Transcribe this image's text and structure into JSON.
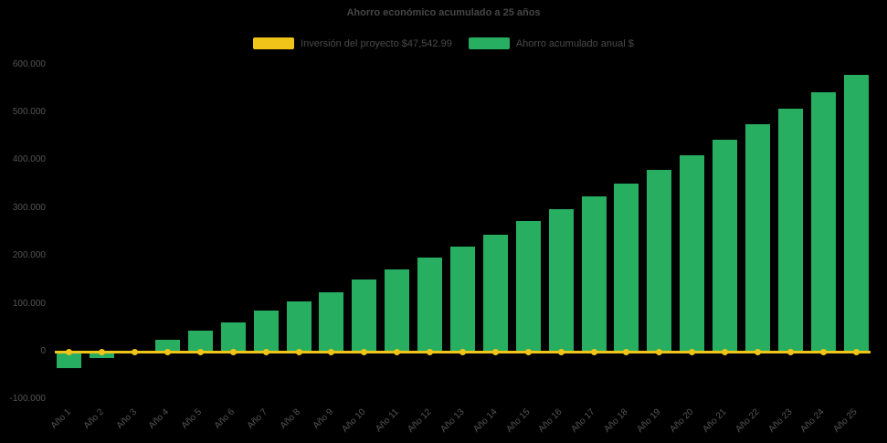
{
  "colors": {
    "background": "#000000",
    "title_text": "#454545",
    "axis_text": "#555555",
    "investment": "#f0c419",
    "savings": "#27ae60"
  },
  "chart_data": {
    "type": "bar",
    "title": "Ahorro económico acumulado a 25 años",
    "categories": [
      "Año 1",
      "Año 2",
      "Año 3",
      "Año 4",
      "Año 5",
      "Año 6",
      "Año 7",
      "Año 8",
      "Año 9",
      "Año 10",
      "Año 11",
      "Año 12",
      "Año 13",
      "Año 14",
      "Año 15",
      "Año 16",
      "Año 17",
      "Año 18",
      "Año 19",
      "Año 20",
      "Año 21",
      "Año 22",
      "Año 23",
      "Año 24",
      "Año 25"
    ],
    "series": [
      {
        "name": "Inversión del proyecto $47,542.99",
        "type": "line",
        "color": "#f0c419",
        "values": [
          0,
          0,
          0,
          0,
          0,
          0,
          0,
          0,
          0,
          0,
          0,
          0,
          0,
          0,
          0,
          0,
          0,
          0,
          0,
          0,
          0,
          0,
          0,
          0,
          0
        ]
      },
      {
        "name": "Ahorro acumulado anual $",
        "type": "bar",
        "color": "#27ae60",
        "values": [
          -35000,
          -14000,
          -4000,
          25000,
          43000,
          62000,
          85000,
          105000,
          125000,
          150000,
          172000,
          196000,
          220000,
          245000,
          272000,
          298000,
          325000,
          352000,
          380000,
          410000,
          442000,
          475000,
          508000,
          542000,
          578000
        ]
      }
    ],
    "ylim": [
      -100000,
      600000
    ],
    "yticks": {
      "values": [
        -100000,
        0,
        100000,
        200000,
        300000,
        400000,
        500000,
        600000
      ],
      "labels": [
        "-100.000",
        "0",
        "100.000",
        "200.000",
        "300.000",
        "400.000",
        "500.000",
        "600.000"
      ]
    },
    "xlabel": "",
    "ylabel": "",
    "grid": false,
    "legend_position": "top"
  }
}
